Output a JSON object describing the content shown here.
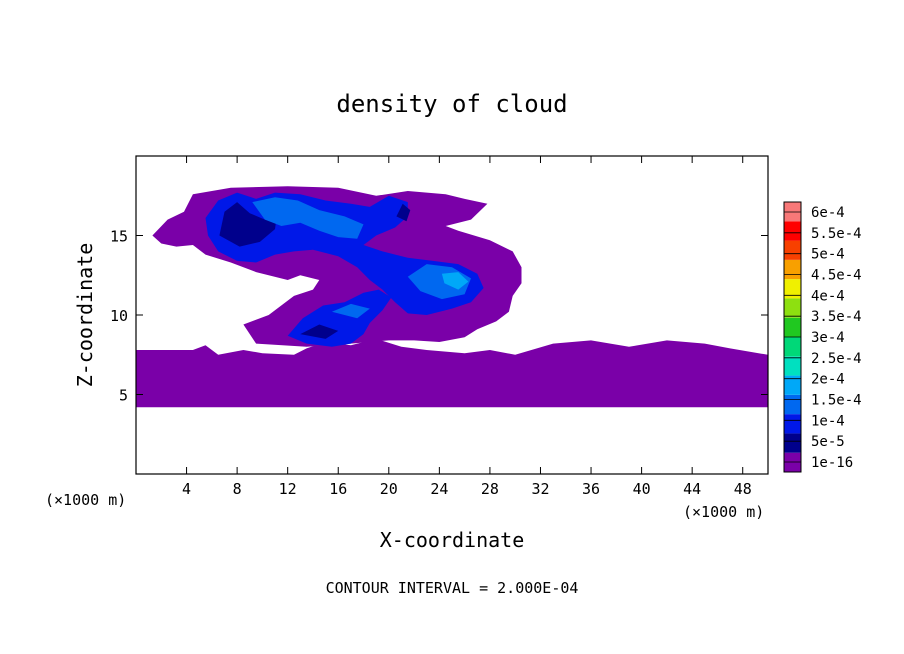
{
  "chart_data": {
    "type": "heatmap",
    "title": "density of cloud",
    "xlabel": "X-coordinate",
    "ylabel": "Z-coordinate",
    "x_unit": "(×1000 m)",
    "xlim": [
      0,
      50
    ],
    "ylim": [
      0,
      20
    ],
    "x_ticks": [
      4,
      8,
      12,
      16,
      20,
      24,
      28,
      32,
      36,
      40,
      44,
      48
    ],
    "y_ticks": [
      5,
      10,
      15
    ],
    "footer": "CONTOUR INTERVAL = 2.000E-04",
    "colorbar": {
      "levels": [
        "1e-16",
        "5e-5",
        "1e-4",
        "1.5e-4",
        "2e-4",
        "2.5e-4",
        "3e-4",
        "3.5e-4",
        "4e-4",
        "4.5e-4",
        "5e-4",
        "5.5e-4",
        "6e-4"
      ],
      "colors": [
        "#7a00a8",
        "#00008c",
        "#0018e8",
        "#0068f0",
        "#00a8f8",
        "#00e0c0",
        "#00d878",
        "#20c820",
        "#8ee010",
        "#f0f000",
        "#f8a000",
        "#f84000",
        "#ff0000",
        "#f87878"
      ]
    },
    "regions": [
      {
        "level": "1e-16",
        "color": "#7a00a8",
        "polygon": [
          [
            0,
            7.8
          ],
          [
            4.5,
            7.8
          ],
          [
            5.5,
            8.1
          ],
          [
            6.5,
            7.5
          ],
          [
            8.5,
            7.8
          ],
          [
            10,
            7.6
          ],
          [
            12.5,
            7.5
          ],
          [
            13.5,
            7.9
          ],
          [
            15,
            8.3
          ],
          [
            17,
            8.1
          ],
          [
            19,
            8.5
          ],
          [
            21,
            8.0
          ],
          [
            23,
            7.8
          ],
          [
            26,
            7.6
          ],
          [
            28,
            7.8
          ],
          [
            30,
            7.5
          ],
          [
            33,
            8.2
          ],
          [
            36,
            8.4
          ],
          [
            39,
            8.0
          ],
          [
            42,
            8.4
          ],
          [
            45,
            8.2
          ],
          [
            47,
            7.9
          ],
          [
            50,
            7.5
          ],
          [
            50,
            4.2
          ],
          [
            0,
            4.2
          ]
        ]
      },
      {
        "level": "1e-16",
        "color": "#7a00a8",
        "polygon": [
          [
            1.3,
            15.0
          ],
          [
            2.5,
            16.0
          ],
          [
            3.8,
            16.5
          ],
          [
            4.5,
            17.6
          ],
          [
            7.5,
            18.0
          ],
          [
            12,
            18.1
          ],
          [
            16,
            18.0
          ],
          [
            19,
            17.5
          ],
          [
            21.5,
            17.8
          ],
          [
            24.5,
            17.6
          ],
          [
            26,
            17.3
          ],
          [
            27.8,
            17.0
          ],
          [
            26.5,
            16.0
          ],
          [
            24.5,
            15.6
          ],
          [
            25.5,
            15.3
          ],
          [
            28,
            14.7
          ],
          [
            29.8,
            14.0
          ],
          [
            30.5,
            13.0
          ],
          [
            30.5,
            12.0
          ],
          [
            29.8,
            11.2
          ],
          [
            29.5,
            10.2
          ],
          [
            28.5,
            9.6
          ],
          [
            27,
            9.1
          ],
          [
            26,
            8.6
          ],
          [
            24,
            8.3
          ],
          [
            22,
            8.4
          ],
          [
            20,
            8.4
          ],
          [
            17,
            8.2
          ],
          [
            13.5,
            8.0
          ],
          [
            9.5,
            8.2
          ],
          [
            8.5,
            9.4
          ],
          [
            10.5,
            10.0
          ],
          [
            12.5,
            11.2
          ],
          [
            14.0,
            11.6
          ],
          [
            14.5,
            12.2
          ],
          [
            13.0,
            12.5
          ],
          [
            12.0,
            12.2
          ],
          [
            9.5,
            12.7
          ],
          [
            7.5,
            13.3
          ],
          [
            5.5,
            13.8
          ],
          [
            4.5,
            14.4
          ],
          [
            3.2,
            14.3
          ],
          [
            2.0,
            14.5
          ]
        ]
      },
      {
        "level": "1e-4",
        "color": "#0018e8",
        "polygon": [
          [
            5.5,
            16.1
          ],
          [
            6.5,
            17.2
          ],
          [
            8.0,
            17.7
          ],
          [
            9.5,
            17.3
          ],
          [
            11,
            17.7
          ],
          [
            13,
            17.6
          ],
          [
            15,
            17.2
          ],
          [
            17,
            17.0
          ],
          [
            18.5,
            16.8
          ],
          [
            20,
            17.5
          ],
          [
            21.5,
            17.1
          ],
          [
            21.5,
            16.2
          ],
          [
            20.5,
            15.5
          ],
          [
            19,
            15.0
          ],
          [
            18,
            14.4
          ],
          [
            19.5,
            14.0
          ],
          [
            21.5,
            13.6
          ],
          [
            23.5,
            13.4
          ],
          [
            25.5,
            13.2
          ],
          [
            27,
            12.6
          ],
          [
            27.5,
            11.7
          ],
          [
            26.5,
            10.8
          ],
          [
            25.0,
            10.4
          ],
          [
            23,
            10.0
          ],
          [
            21.5,
            10.1
          ],
          [
            20.5,
            10.8
          ],
          [
            19.5,
            11.6
          ],
          [
            18.5,
            12.2
          ],
          [
            17.5,
            13.0
          ],
          [
            16,
            13.7
          ],
          [
            14,
            14.1
          ],
          [
            12.5,
            14.0
          ],
          [
            11,
            13.8
          ],
          [
            9.5,
            13.3
          ],
          [
            8,
            13.4
          ],
          [
            6.5,
            14.0
          ],
          [
            5.7,
            15.0
          ]
        ]
      },
      {
        "level": "1e-4",
        "color": "#0018e8",
        "polygon": [
          [
            12.0,
            8.7
          ],
          [
            13.2,
            9.8
          ],
          [
            14.8,
            10.6
          ],
          [
            16.5,
            10.8
          ],
          [
            18.0,
            11.4
          ],
          [
            19.2,
            11.6
          ],
          [
            20.2,
            11.1
          ],
          [
            19.5,
            10.3
          ],
          [
            18.5,
            9.5
          ],
          [
            18.0,
            8.8
          ],
          [
            17.0,
            8.2
          ],
          [
            15.5,
            8.0
          ],
          [
            13.5,
            8.2
          ]
        ]
      },
      {
        "level": "5e-5",
        "color": "#00008c",
        "polygon": [
          [
            6.6,
            15.0
          ],
          [
            7.0,
            16.5
          ],
          [
            8.0,
            17.1
          ],
          [
            9.0,
            16.4
          ],
          [
            10.2,
            16.0
          ],
          [
            11.2,
            16.6
          ],
          [
            11.0,
            15.4
          ],
          [
            9.8,
            14.6
          ],
          [
            8.2,
            14.3
          ]
        ]
      },
      {
        "level": "5e-5",
        "color": "#00008c",
        "polygon": [
          [
            20.6,
            16.2
          ],
          [
            21.1,
            17.0
          ],
          [
            21.7,
            16.6
          ],
          [
            21.4,
            15.9
          ]
        ]
      },
      {
        "level": "5e-5",
        "color": "#00008c",
        "polygon": [
          [
            13.0,
            8.8
          ],
          [
            14.5,
            9.4
          ],
          [
            16.0,
            9.0
          ],
          [
            15.0,
            8.5
          ]
        ]
      },
      {
        "level": "1.5e-4",
        "color": "#0068f0",
        "polygon": [
          [
            9.2,
            17.1
          ],
          [
            11.0,
            17.4
          ],
          [
            12.8,
            17.2
          ],
          [
            14.5,
            16.6
          ],
          [
            16.5,
            16.2
          ],
          [
            18.0,
            15.7
          ],
          [
            17.5,
            14.8
          ],
          [
            16.0,
            14.9
          ],
          [
            14.5,
            15.3
          ],
          [
            13.0,
            15.8
          ],
          [
            11.5,
            15.6
          ],
          [
            10.2,
            16.0
          ]
        ]
      },
      {
        "level": "1.5e-4",
        "color": "#0068f0",
        "polygon": [
          [
            21.5,
            12.4
          ],
          [
            23.0,
            13.2
          ],
          [
            25.0,
            13.0
          ],
          [
            26.5,
            12.3
          ],
          [
            26.0,
            11.3
          ],
          [
            24.2,
            11.0
          ],
          [
            22.5,
            11.5
          ]
        ]
      },
      {
        "level": "1.5e-4",
        "color": "#0068f0",
        "polygon": [
          [
            15.5,
            10.2
          ],
          [
            17.0,
            10.7
          ],
          [
            18.5,
            10.4
          ],
          [
            17.5,
            9.8
          ]
        ]
      },
      {
        "level": "2e-4",
        "color": "#00a8f8",
        "polygon": [
          [
            24.2,
            12.6
          ],
          [
            25.5,
            12.7
          ],
          [
            26.3,
            12.1
          ],
          [
            25.5,
            11.6
          ],
          [
            24.4,
            12.0
          ]
        ]
      }
    ]
  }
}
